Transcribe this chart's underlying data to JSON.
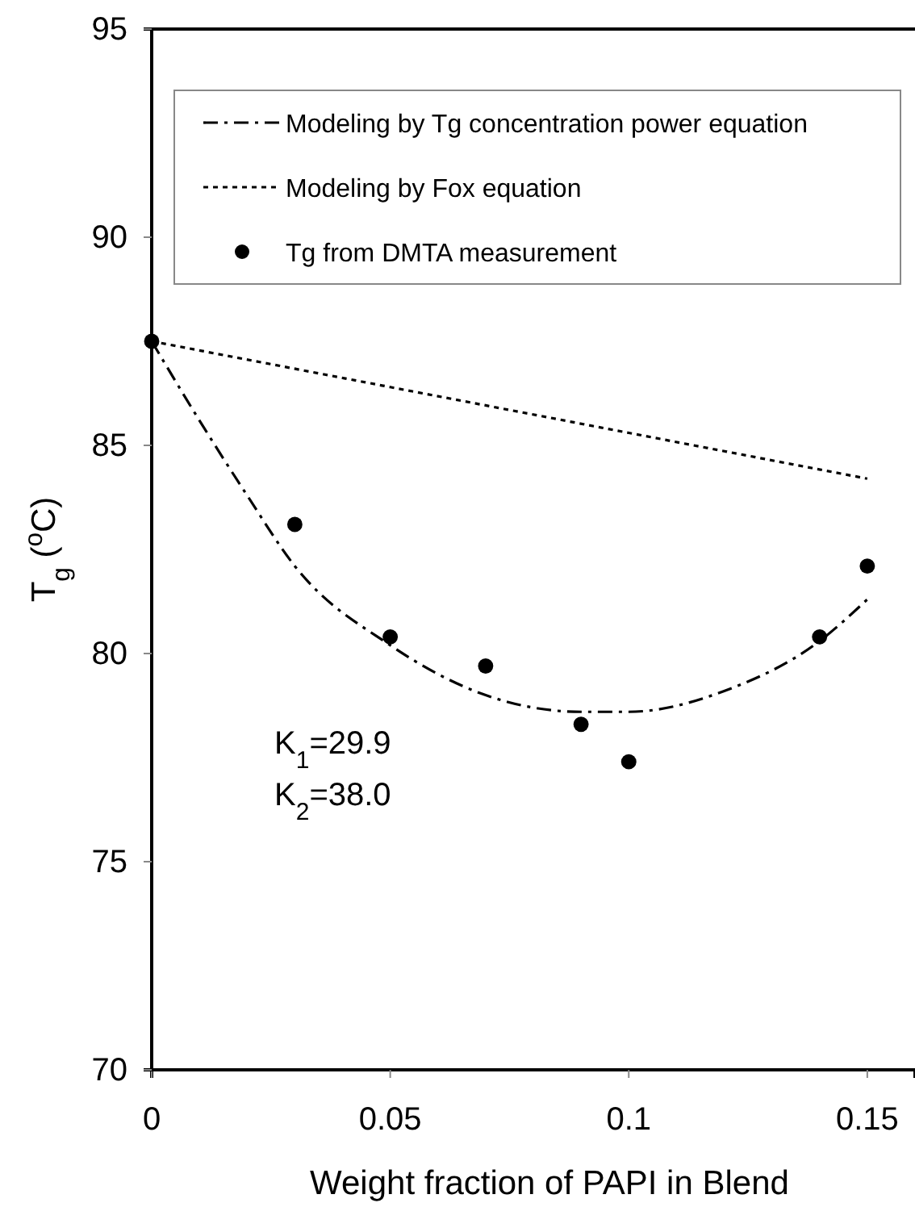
{
  "chart_data": {
    "type": "line",
    "xlabel": "Weight fraction of PAPI in Blend",
    "ylabel": "T$_{g}$ ($^{o}$C)",
    "xlim": [
      0,
      0.16
    ],
    "xticks": [
      0,
      0.05,
      0.1,
      0.15
    ],
    "ylim": [
      70,
      95
    ],
    "yticks": [
      70,
      75,
      80,
      85,
      90,
      95
    ],
    "legend": "top right",
    "annotations": [
      "K$_{1}$=29.9",
      "K$_{2}$=38.0"
    ],
    "series": [
      {
        "name": "Modeling by Tg concentration power equation",
        "line_style": "dashed",
        "color": "#000000",
        "x": [
          0,
          0.01,
          0.02,
          0.03,
          0.05,
          0.07,
          0.09,
          0.1,
          0.12,
          0.14,
          0.15
        ],
        "values": [
          87.5,
          85.6,
          83.8,
          82.1,
          80.2,
          79.0,
          78.6,
          78.6,
          79.1,
          80.3,
          81.3
        ]
      },
      {
        "name": "Modeling by Fox equation",
        "line_style": "dotted",
        "color": "#000000",
        "x": [
          0,
          0.05,
          0.1,
          0.15
        ],
        "values": [
          87.5,
          86.4,
          85.3,
          84.2
        ]
      },
      {
        "name": "Tg from DMTA measurement",
        "type": "scatter",
        "marker": "circle",
        "color": "#000000",
        "x": [
          0,
          0.03,
          0.05,
          0.07,
          0.09,
          0.1,
          0.14,
          0.15
        ],
        "values": [
          87.5,
          83.1,
          80.4,
          79.7,
          78.3,
          77.4,
          80.4,
          82.1
        ]
      }
    ]
  }
}
